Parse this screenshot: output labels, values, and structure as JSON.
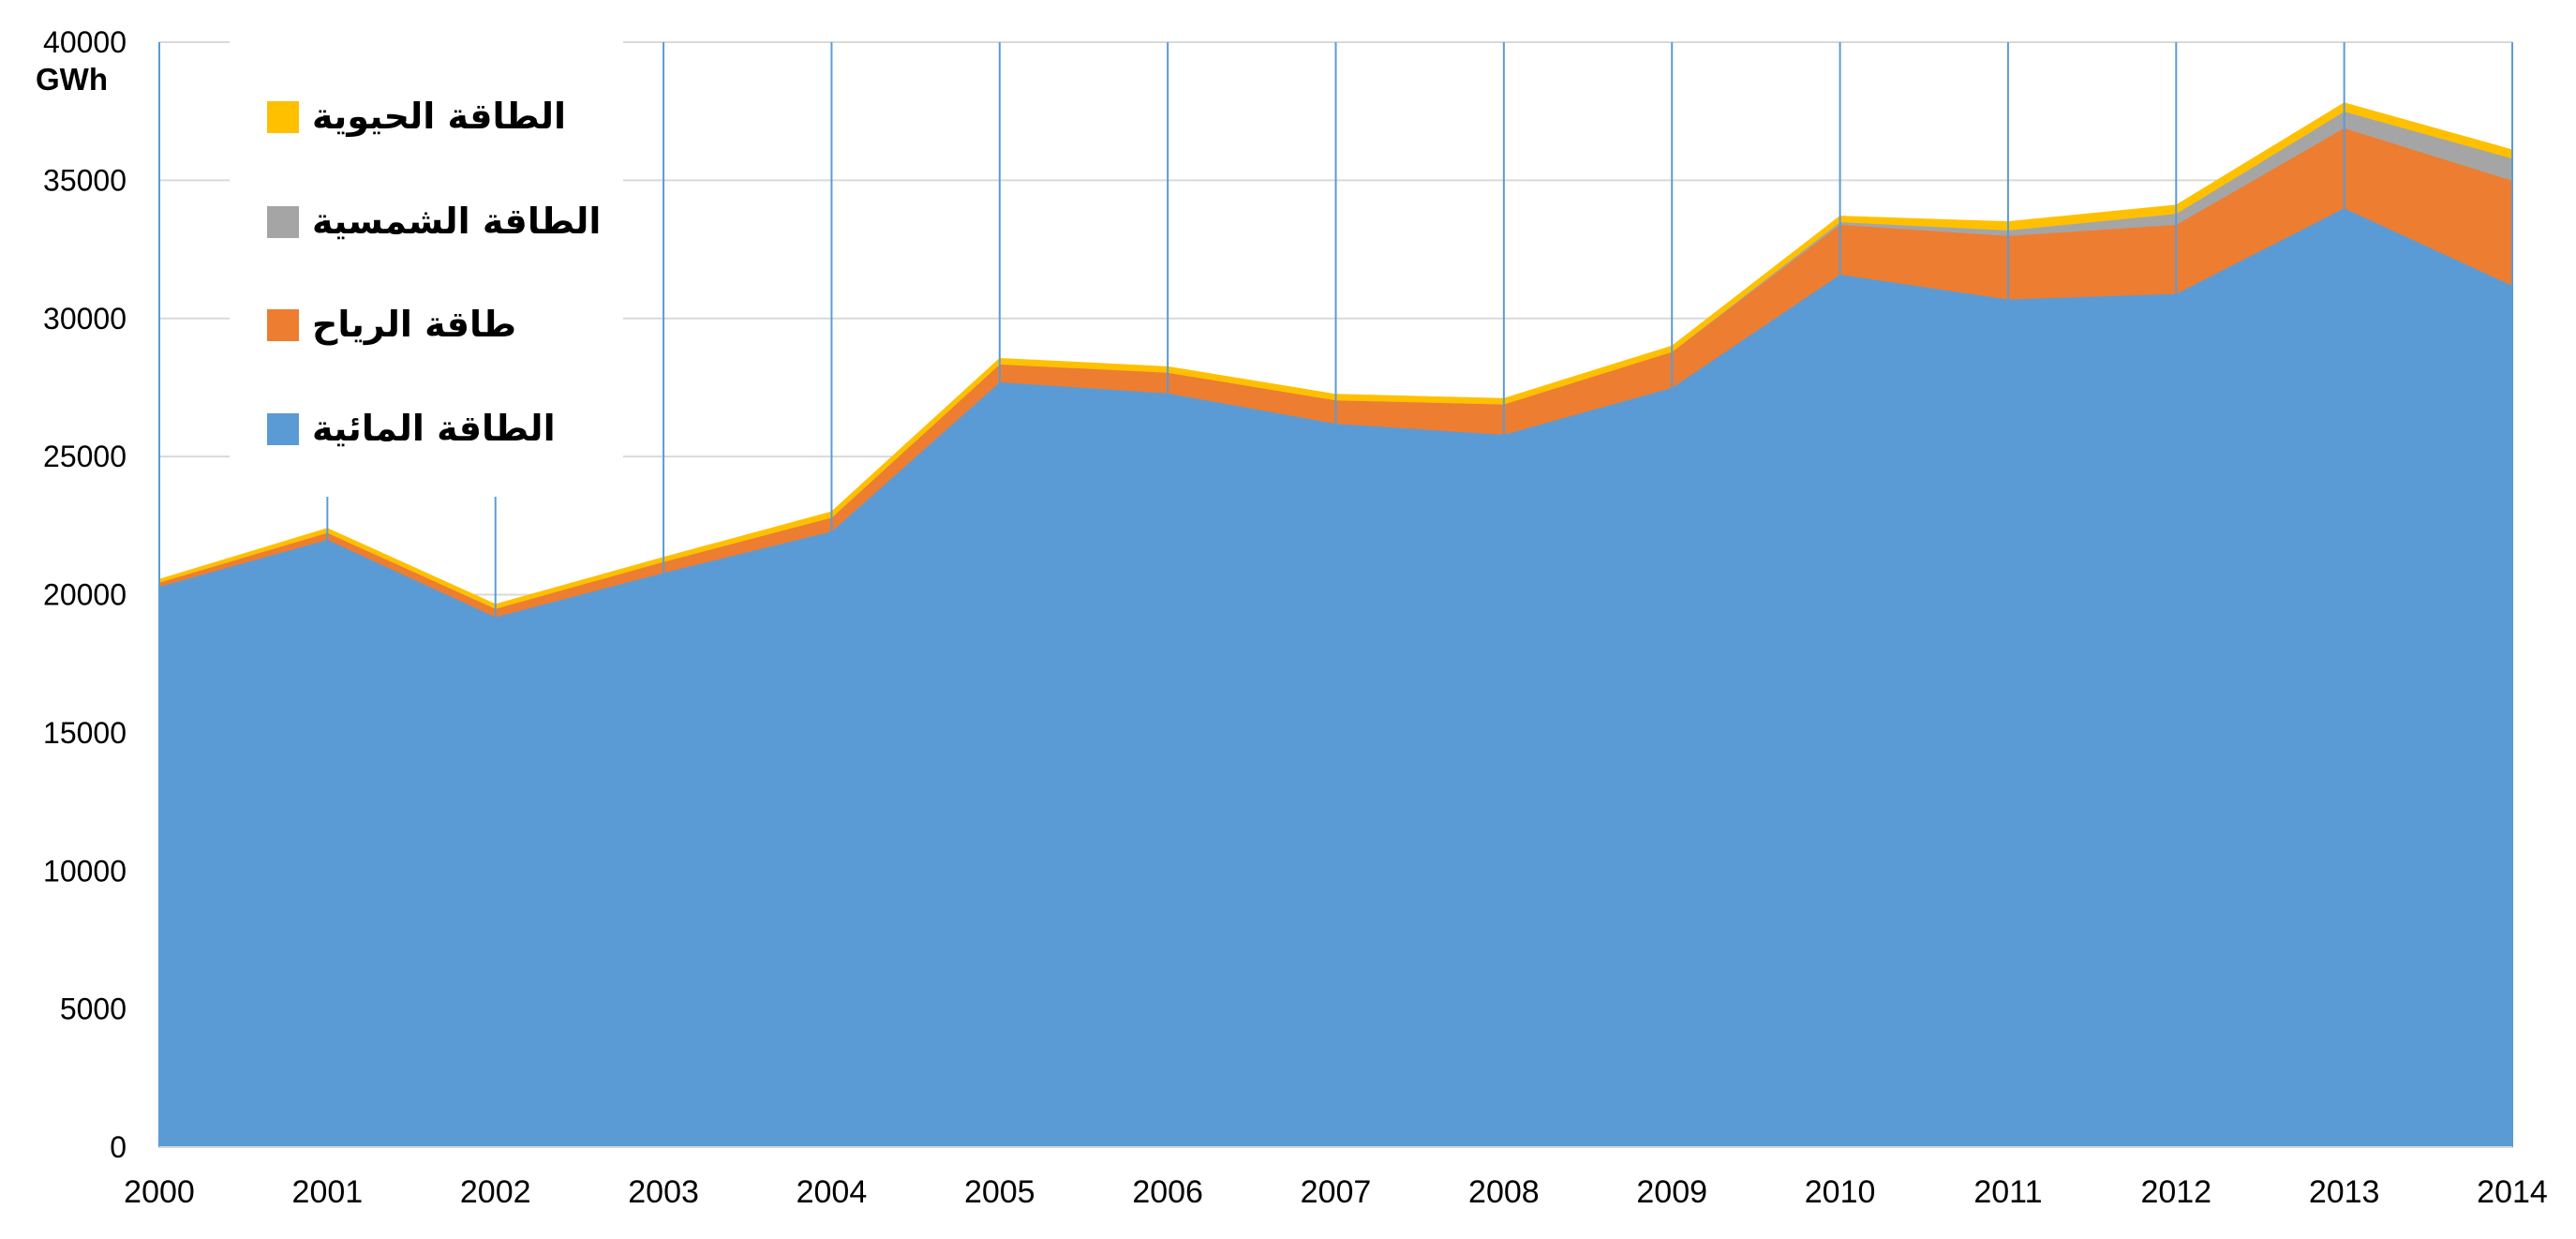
{
  "chart_data": {
    "type": "area",
    "stacked": true,
    "unit_label": "GWh",
    "x": [
      "2000",
      "2001",
      "2002",
      "2003",
      "2004",
      "2005",
      "2006",
      "2007",
      "2008",
      "2009",
      "2010",
      "2011",
      "2012",
      "2013",
      "2014"
    ],
    "ylim": [
      0,
      40000
    ],
    "y_ticks": [
      "0",
      "5000",
      "10000",
      "15000",
      "20000",
      "25000",
      "30000",
      "35000",
      "40000"
    ],
    "grid": {
      "horizontal": true,
      "vertical": true
    },
    "legend_position": "top-left",
    "series": [
      {
        "name": "الطاقة المائية",
        "color": "#5B9BD5",
        "values": [
          20300,
          22000,
          19200,
          20800,
          22300,
          27700,
          27300,
          26200,
          25800,
          27500,
          31600,
          30700,
          30900,
          34000,
          31200
        ]
      },
      {
        "name": "طاقة الرياح",
        "color": "#ED7D31",
        "values": [
          150,
          250,
          300,
          400,
          500,
          650,
          750,
          850,
          1100,
          1300,
          1800,
          2300,
          2500,
          2900,
          3800
        ]
      },
      {
        "name": "الطاقة الشمسية",
        "color": "#A5A5A5",
        "values": [
          0,
          0,
          0,
          0,
          0,
          0,
          0,
          0,
          0,
          0,
          100,
          200,
          400,
          600,
          800
        ]
      },
      {
        "name": "الطاقة الحيوية",
        "color": "#FFC000",
        "values": [
          100,
          150,
          150,
          150,
          200,
          200,
          200,
          200,
          200,
          200,
          200,
          300,
          300,
          300,
          300
        ]
      }
    ]
  }
}
